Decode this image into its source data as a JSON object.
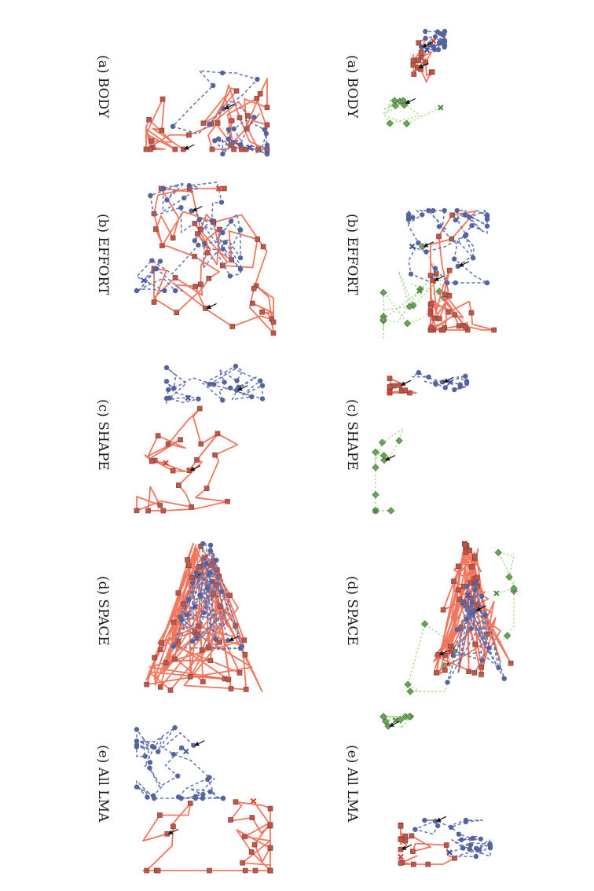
{
  "figure": {
    "orientation": "rotated-90-clockwise",
    "colors": {
      "red_series": "#f2765e",
      "red_marker": "#c0564a",
      "blue_series": "#6070b0",
      "blue_marker": "#55649c",
      "green_series": "#8fcf6c",
      "green_marker": "#6aa35a",
      "arrow": "#111111"
    },
    "columns": [
      {
        "id": "right-column",
        "panels": [
          {
            "id": "a",
            "caption": "(a) BODY",
            "series": [
              "red",
              "blue",
              "green"
            ]
          },
          {
            "id": "b",
            "caption": "(b) EFFORT",
            "series": [
              "red",
              "blue",
              "green"
            ]
          },
          {
            "id": "c",
            "caption": "(c) SHAPE",
            "series": [
              "red",
              "blue",
              "green"
            ]
          },
          {
            "id": "d",
            "caption": "(d) SPACE",
            "series": [
              "red",
              "blue",
              "green"
            ]
          },
          {
            "id": "e",
            "caption": "(e) All LMA",
            "series": [
              "red",
              "blue",
              "green"
            ]
          }
        ]
      },
      {
        "id": "left-column",
        "panels": [
          {
            "id": "a",
            "caption": "(a) BODY",
            "series": [
              "red",
              "blue"
            ]
          },
          {
            "id": "b",
            "caption": "(b) EFFORT",
            "series": [
              "red",
              "blue"
            ]
          },
          {
            "id": "c",
            "caption": "(c) SHAPE",
            "series": [
              "red",
              "blue"
            ]
          },
          {
            "id": "d",
            "caption": "(d) SPACE",
            "series": [
              "red",
              "blue"
            ]
          },
          {
            "id": "e",
            "caption": "(e) All LMA",
            "series": [
              "red",
              "blue"
            ]
          }
        ]
      }
    ]
  }
}
